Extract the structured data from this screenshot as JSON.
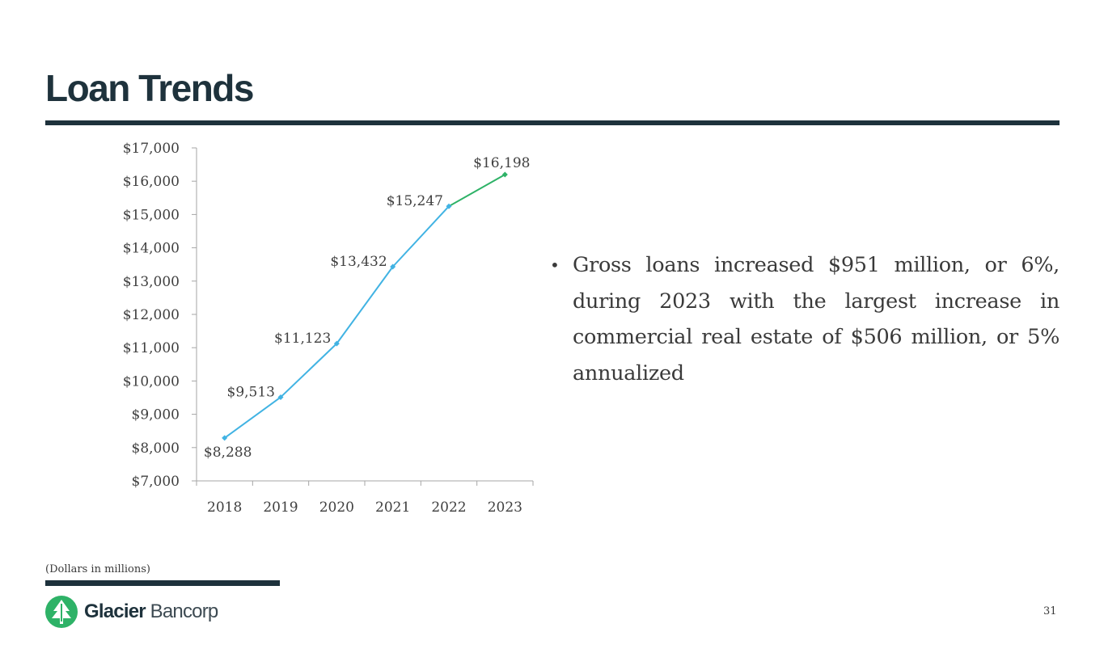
{
  "slide": {
    "title": "Loan Trends",
    "bullet": "Gross loans increased $951 million, or 6%, during 2023 with the largest increase in commercial real estate of $506 million, or 5% annualized",
    "footnote": "(Dollars in millions)",
    "page_number": "31"
  },
  "logo": {
    "name_bold": "Glacier",
    "name_light": " Bancorp",
    "icon": "tree-icon",
    "color": "#2eb267"
  },
  "colors": {
    "navy": "#1e323c",
    "line_blue": "#41b3e3",
    "line_green": "#2eb267"
  },
  "chart_data": {
    "type": "line",
    "categories": [
      "2018",
      "2019",
      "2020",
      "2021",
      "2022",
      "2023"
    ],
    "values": [
      8288,
      9513,
      11123,
      13432,
      15247,
      16198
    ],
    "data_labels": [
      "$8,288",
      "$9,513",
      "$11,123",
      "$13,432",
      "$15,247",
      "$16,198"
    ],
    "ylim": [
      7000,
      17000
    ],
    "yticks": [
      7000,
      8000,
      9000,
      10000,
      11000,
      12000,
      13000,
      14000,
      15000,
      16000,
      17000
    ],
    "ytick_labels": [
      "$7,000",
      "$8,000",
      "$9,000",
      "$10,000",
      "$11,000",
      "$12,000",
      "$13,000",
      "$14,000",
      "$15,000",
      "$16,000",
      "$17,000"
    ],
    "grid": false,
    "highlight_last_segment": true,
    "title": "",
    "xlabel": "",
    "ylabel": ""
  }
}
